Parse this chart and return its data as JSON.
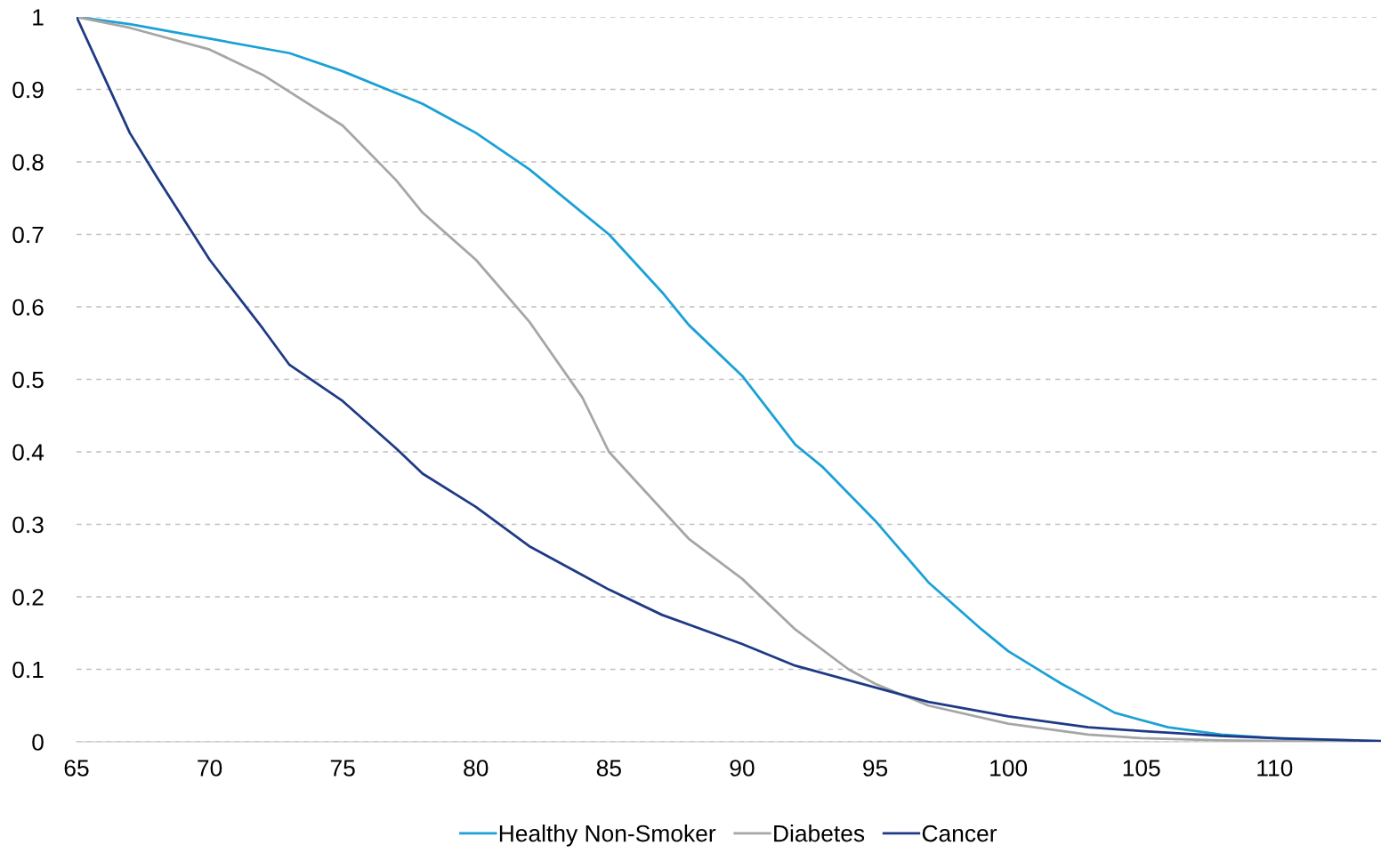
{
  "chart_data": {
    "type": "line",
    "xlim": [
      65,
      114
    ],
    "xticks": [
      65,
      70,
      75,
      80,
      85,
      90,
      95,
      100,
      105,
      110
    ],
    "ylim": [
      0,
      1
    ],
    "yticks": [
      0,
      0.1,
      0.2,
      0.3,
      0.4,
      0.5,
      0.6,
      0.7,
      0.8,
      0.9,
      1
    ],
    "grid": "y",
    "legend": "bottom",
    "marker": "none",
    "line_style": "solid",
    "series": [
      {
        "name": "Healthy Non-Smoker",
        "color": "#1ba1d5",
        "x": [
          65,
          67,
          70,
          73,
          75,
          78,
          80,
          82,
          84,
          85,
          87,
          88,
          90,
          92,
          93,
          95,
          97,
          99,
          100,
          102,
          104,
          106,
          108,
          110,
          111,
          113
        ],
        "values": [
          1,
          0.99,
          0.97,
          0.95,
          0.925,
          0.88,
          0.84,
          0.79,
          0.73,
          0.7,
          0.62,
          0.575,
          0.505,
          0.41,
          0.38,
          0.305,
          0.22,
          0.155,
          0.125,
          0.08,
          0.04,
          0.02,
          0.01,
          0.005,
          0.003,
          0.002
        ]
      },
      {
        "name": "Diabetes",
        "color": "#a6a6a6",
        "x": [
          65,
          67,
          70,
          72,
          75,
          77,
          78,
          80,
          82,
          84,
          85,
          87,
          88,
          90,
          92,
          94,
          95,
          97,
          100,
          103,
          105,
          108,
          113
        ],
        "values": [
          1,
          0.985,
          0.955,
          0.92,
          0.85,
          0.775,
          0.73,
          0.665,
          0.58,
          0.475,
          0.4,
          0.32,
          0.28,
          0.225,
          0.155,
          0.1,
          0.08,
          0.05,
          0.025,
          0.01,
          0.005,
          0.002,
          0
        ]
      },
      {
        "name": "Cancer",
        "color": "#1f3a85",
        "x": [
          65,
          66,
          67,
          68,
          70,
          72,
          73,
          75,
          77,
          78,
          80,
          82,
          84,
          85,
          87,
          90,
          92,
          95,
          97,
          100,
          103,
          105,
          108,
          110,
          113,
          114
        ],
        "values": [
          1,
          0.92,
          0.84,
          0.78,
          0.665,
          0.57,
          0.52,
          0.47,
          0.405,
          0.37,
          0.324,
          0.27,
          0.23,
          0.21,
          0.175,
          0.135,
          0.105,
          0.075,
          0.055,
          0.035,
          0.02,
          0.015,
          0.008,
          0.005,
          0.002,
          0.001
        ]
      }
    ]
  }
}
